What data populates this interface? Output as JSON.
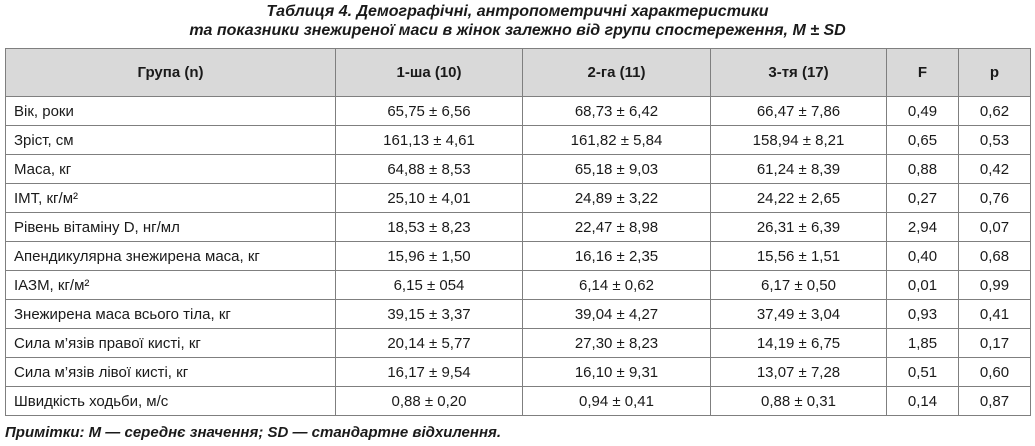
{
  "header": {
    "title_line1": "Таблиця 4. Демографічні, антропометричні характеристики",
    "title_line2": "та показники знежиреної маси в жінок залежно від групи спостереження, M ± SD"
  },
  "table": {
    "columns": [
      "Група (n)",
      "1-ша (10)",
      "2-га (11)",
      "3-тя (17)",
      "F",
      "p"
    ],
    "rows": [
      [
        "Вік, роки",
        "65,75 ± 6,56",
        "68,73 ± 6,42",
        "66,47 ± 7,86",
        "0,49",
        "0,62"
      ],
      [
        "Зріст, см",
        "161,13 ± 4,61",
        "161,82 ± 5,84",
        "158,94 ± 8,21",
        "0,65",
        "0,53"
      ],
      [
        "Маса, кг",
        "64,88 ± 8,53",
        "65,18 ± 9,03",
        "61,24 ± 8,39",
        "0,88",
        "0,42"
      ],
      [
        "ІМТ, кг/м²",
        "25,10 ± 4,01",
        "24,89 ± 3,22",
        "24,22 ± 2,65",
        "0,27",
        "0,76"
      ],
      [
        "Рівень вітаміну D, нг/мл",
        "18,53 ± 8,23",
        "22,47 ± 8,98",
        "26,31 ± 6,39",
        "2,94",
        "0,07"
      ],
      [
        "Апендикулярна знежирена маса, кг",
        "15,96 ± 1,50",
        "16,16 ± 2,35",
        "15,56 ± 1,51",
        "0,40",
        "0,68"
      ],
      [
        "ІАЗМ, кг/м²",
        "6,15 ± 054",
        "6,14 ± 0,62",
        "6,17 ± 0,50",
        "0,01",
        "0,99"
      ],
      [
        "Знежирена маса всього тіла, кг",
        "39,15 ± 3,37",
        "39,04 ± 4,27",
        "37,49 ± 3,04",
        "0,93",
        "0,41"
      ],
      [
        "Сила м’язів правої кисті, кг",
        "20,14 ± 5,77",
        "27,30 ± 8,23",
        "14,19 ± 6,75",
        "1,85",
        "0,17"
      ],
      [
        "Сила м’язів лівої кисті, кг",
        "16,17 ± 9,54",
        "16,10 ± 9,31",
        "13,07 ± 7,28",
        "0,51",
        "0,60"
      ],
      [
        "Швидкість ходьби, м/с",
        "0,88 ± 0,20",
        "0,94 ± 0,41",
        "0,88 ± 0,31",
        "0,14",
        "0,87"
      ]
    ]
  },
  "footnote": "Примітки: M — середнє значення; SD — стандартне відхилення."
}
